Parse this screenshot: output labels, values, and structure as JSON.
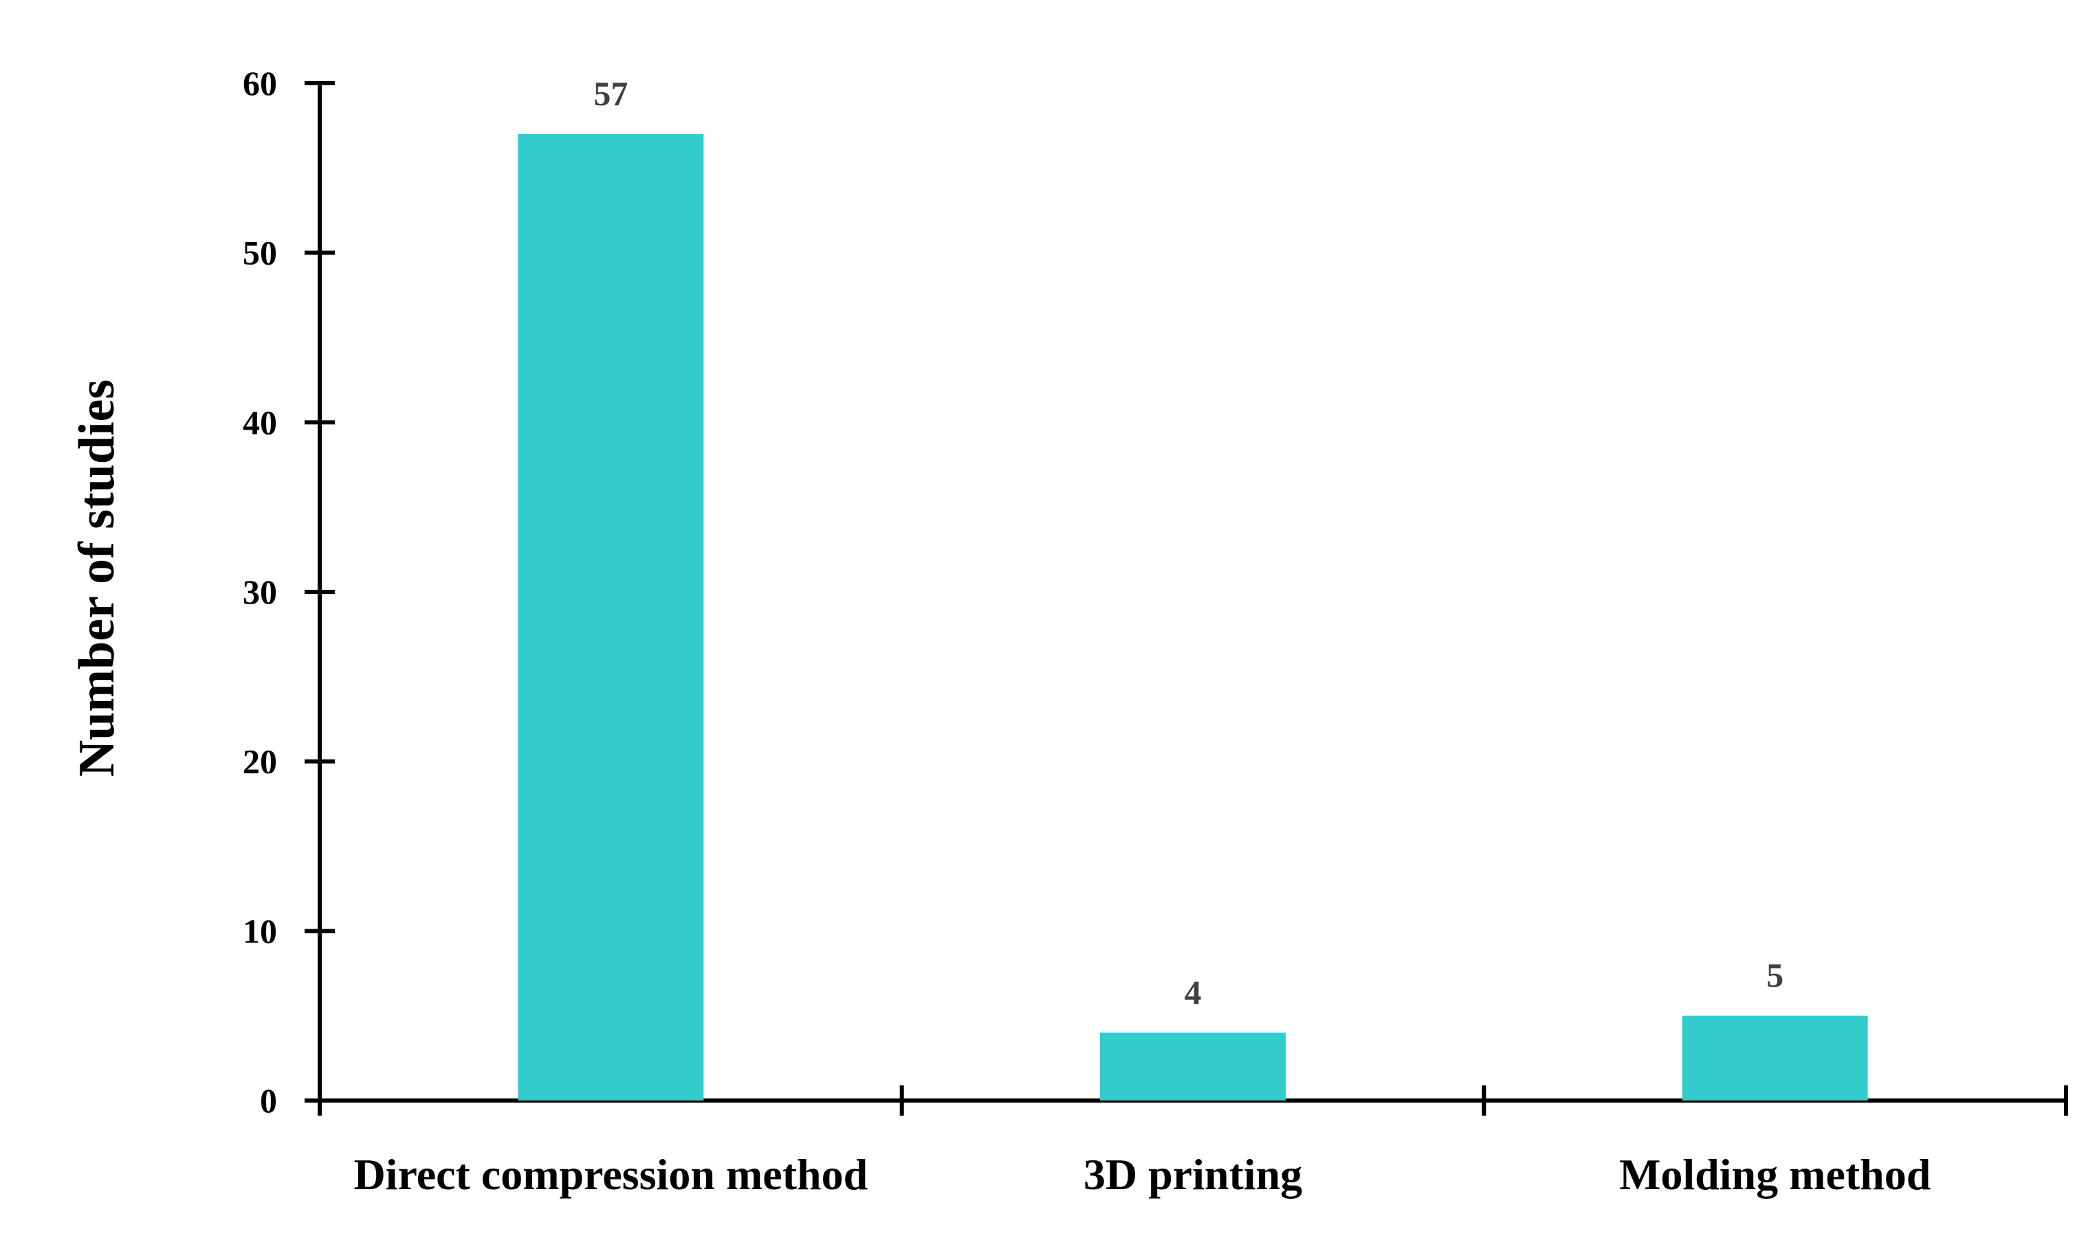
{
  "chart_data": {
    "type": "bar",
    "categories": [
      "Direct compression method",
      "3D printing",
      "Molding method"
    ],
    "values": [
      57,
      4,
      5
    ],
    "data_labels": [
      "57",
      "4",
      "5"
    ],
    "title": "",
    "xlabel": "",
    "ylabel": "Number of studies",
    "ylim": [
      0,
      60
    ],
    "yticks": [
      0,
      10,
      20,
      30,
      40,
      50,
      60
    ],
    "grid": false,
    "legend": "none",
    "bar_color": "#33CCCC"
  }
}
